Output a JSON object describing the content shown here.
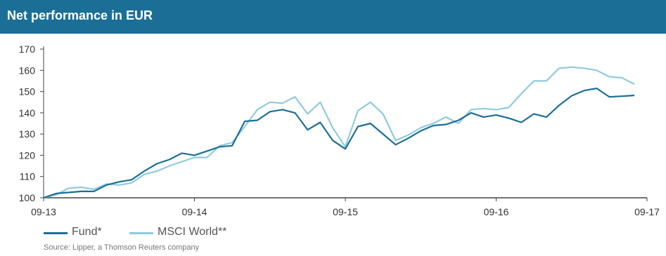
{
  "header": {
    "title": "Net performance in EUR"
  },
  "colors": {
    "header_bg": "#1b6f96",
    "fund": "#1b6f96",
    "msci": "#8fcbe0",
    "axis": "#444444"
  },
  "chart_data": {
    "type": "line",
    "title": "Net performance in EUR",
    "xlabel": "",
    "ylabel": "",
    "x_ticks": [
      "09-13",
      "09-14",
      "09-15",
      "09-16",
      "09-17"
    ],
    "y_ticks": [
      100,
      110,
      120,
      130,
      140,
      150,
      160,
      170
    ],
    "ylim": [
      100,
      170
    ],
    "x_range_months": [
      "09-13",
      "09-17"
    ],
    "grid": false,
    "legend_position": "bottom-left",
    "series": [
      {
        "name": "Fund*",
        "color": "#1b6f96",
        "points": [
          [
            0,
            100
          ],
          [
            1,
            102
          ],
          [
            2,
            102.5
          ],
          [
            3,
            103
          ],
          [
            4,
            103
          ],
          [
            5,
            106
          ],
          [
            6,
            107.5
          ],
          [
            7,
            108.5
          ],
          [
            8,
            112.5
          ],
          [
            9,
            116
          ],
          [
            10,
            118
          ],
          [
            11,
            121
          ],
          [
            12,
            120
          ],
          [
            13,
            122
          ],
          [
            14,
            124
          ],
          [
            15,
            124.5
          ],
          [
            16,
            136
          ],
          [
            17,
            136.5
          ],
          [
            18,
            140.5
          ],
          [
            19,
            141.5
          ],
          [
            20,
            140
          ],
          [
            21,
            132
          ],
          [
            22,
            135.5
          ],
          [
            23,
            127
          ],
          [
            24,
            123
          ],
          [
            25,
            133.5
          ],
          [
            26,
            135
          ],
          [
            27,
            130
          ],
          [
            28,
            125
          ],
          [
            29,
            128
          ],
          [
            30,
            131.5
          ],
          [
            31,
            134
          ],
          [
            32,
            134.5
          ],
          [
            33,
            136.5
          ],
          [
            34,
            140
          ],
          [
            35,
            138
          ],
          [
            36,
            139
          ],
          [
            37,
            137.5
          ],
          [
            38,
            135.5
          ],
          [
            39,
            139.5
          ],
          [
            40,
            138
          ],
          [
            41,
            143.5
          ],
          [
            42,
            148
          ],
          [
            43,
            150.5
          ],
          [
            44,
            151.5
          ],
          [
            45,
            147.5
          ],
          [
            46,
            147.8
          ],
          [
            47,
            148.2
          ]
        ]
      },
      {
        "name": "MSCI World**",
        "color": "#8fcbe0",
        "points": [
          [
            0,
            100
          ],
          [
            1,
            101.5
          ],
          [
            2,
            104.5
          ],
          [
            3,
            105
          ],
          [
            4,
            104
          ],
          [
            5,
            106.5
          ],
          [
            6,
            106
          ],
          [
            7,
            107
          ],
          [
            8,
            111
          ],
          [
            9,
            112.5
          ],
          [
            10,
            115
          ],
          [
            11,
            117
          ],
          [
            12,
            119
          ],
          [
            13,
            119
          ],
          [
            14,
            124.5
          ],
          [
            15,
            126
          ],
          [
            16,
            133.5
          ],
          [
            17,
            141.5
          ],
          [
            18,
            145
          ],
          [
            19,
            144.5
          ],
          [
            20,
            147.5
          ],
          [
            21,
            139.5
          ],
          [
            22,
            145
          ],
          [
            23,
            133
          ],
          [
            24,
            124
          ],
          [
            25,
            141
          ],
          [
            26,
            145
          ],
          [
            27,
            139.5
          ],
          [
            28,
            127
          ],
          [
            29,
            129.5
          ],
          [
            30,
            133
          ],
          [
            31,
            135
          ],
          [
            32,
            138
          ],
          [
            33,
            135
          ],
          [
            34,
            141.5
          ],
          [
            35,
            142
          ],
          [
            36,
            141.5
          ],
          [
            37,
            142.5
          ],
          [
            38,
            149
          ],
          [
            39,
            155
          ],
          [
            40,
            155
          ],
          [
            41,
            161
          ],
          [
            42,
            161.5
          ],
          [
            43,
            161
          ],
          [
            44,
            160
          ],
          [
            45,
            157
          ],
          [
            46,
            156.5
          ],
          [
            47,
            153.5
          ]
        ]
      }
    ]
  },
  "legend": {
    "items": [
      {
        "label": "Fund*"
      },
      {
        "label": "MSCI World**"
      }
    ]
  },
  "source": "Source: Lipper, a Thomson Reuters company"
}
